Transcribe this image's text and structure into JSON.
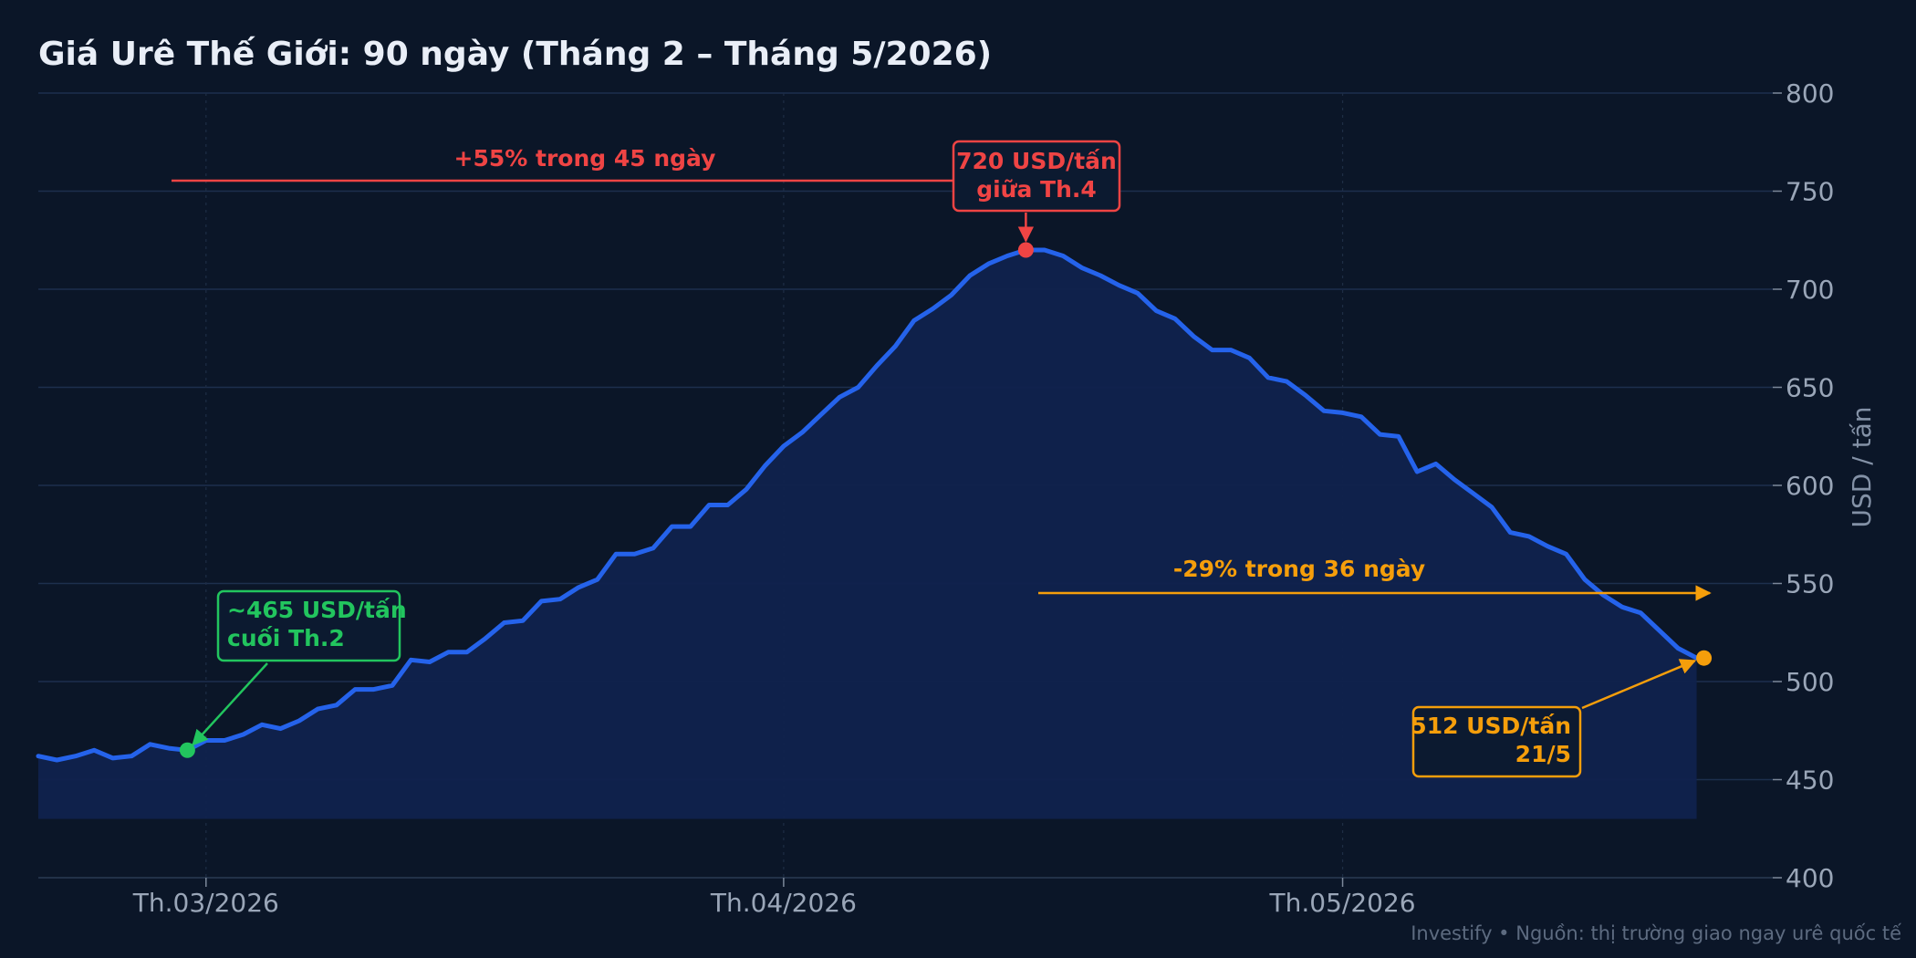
{
  "chart_data": {
    "type": "area",
    "title": "Giá Urê Thế Giới: 90 ngày (Tháng 2 – Tháng 5/2026)",
    "ylabel": "USD / tấn",
    "xlabel": "",
    "ylim": [
      400,
      800
    ],
    "yticks": [
      400,
      450,
      500,
      550,
      600,
      650,
      700,
      750,
      800
    ],
    "x_start": "2026-02-20",
    "x_end": "2026-05-21",
    "xticks": [
      {
        "date": "2026-03-01",
        "label": "Th.03/2026"
      },
      {
        "date": "2026-04-01",
        "label": "Th.04/2026"
      },
      {
        "date": "2026-05-01",
        "label": "Th.05/2026"
      }
    ],
    "grid": true,
    "area_baseline": 430,
    "series": [
      {
        "name": "",
        "start_date": "2026-02-20",
        "values": [
          462,
          460,
          462,
          465,
          461,
          462,
          468,
          466,
          465,
          470,
          470,
          473,
          478,
          476,
          480,
          486,
          488,
          496,
          496,
          498,
          511,
          510,
          515,
          515,
          522,
          530,
          531,
          541,
          542,
          548,
          552,
          565,
          565,
          568,
          579,
          579,
          590,
          590,
          598,
          610,
          620,
          627,
          636,
          645,
          650,
          661,
          671,
          684,
          690,
          697,
          707,
          713,
          717,
          720,
          720,
          717,
          711,
          707,
          702,
          698,
          689,
          685,
          676,
          669,
          669,
          665,
          655,
          653,
          646,
          638,
          637,
          635,
          626,
          625,
          607,
          611,
          603,
          596,
          589,
          576,
          574,
          569,
          565,
          552,
          544,
          538,
          535,
          526,
          517,
          512
        ]
      }
    ],
    "annotations": [
      {
        "text": "+55% trong 45 ngày",
        "color": "#ef4444"
      },
      {
        "text": "-29% trong 36 ngày",
        "color": "#f59e0b"
      },
      {
        "lines": [
          "720 USD/tấn",
          "giữa Th.4"
        ],
        "date": "2026-04-14",
        "value": 720,
        "color": "#ef4444"
      },
      {
        "lines": [
          "~465 USD/tấn",
          "cuối Th.2"
        ],
        "date": "2026-02-28",
        "value": 465,
        "color": "#22c55e"
      },
      {
        "lines": [
          "512 USD/tấn",
          "21/5"
        ],
        "date": "2026-05-20",
        "value": 512,
        "color": "#f59e0b"
      }
    ]
  },
  "colors": {
    "background": "#0b1628",
    "line": "#2563eb",
    "area_fill": "#10224d",
    "peak": "#ef4444",
    "start": "#22c55e",
    "end": "#f59e0b",
    "text": "#e9eef7",
    "muted": "#9aa6b8"
  },
  "footer": "Investify  •  Nguồn: thị trường giao ngay urê quốc tế"
}
